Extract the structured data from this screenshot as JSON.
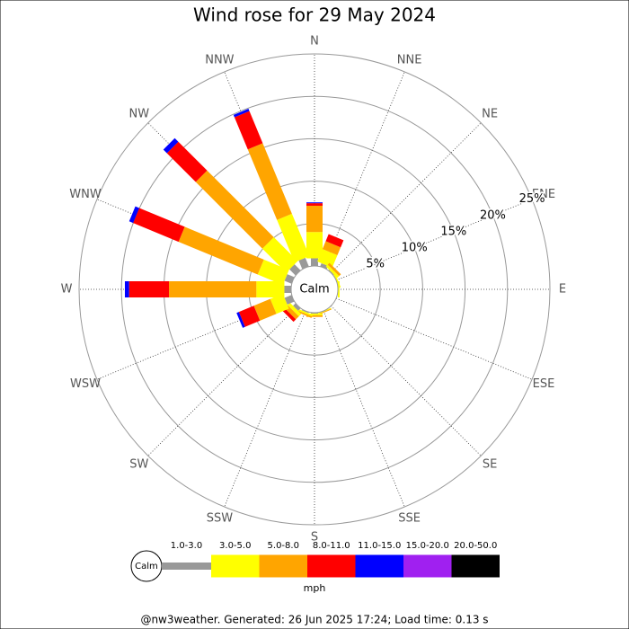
{
  "chart_data": {
    "type": "windrose",
    "title": "Wind rose for 29 May 2024",
    "directions": [
      "N",
      "NNE",
      "NE",
      "ENE",
      "E",
      "ESE",
      "SE",
      "SSE",
      "S",
      "SSW",
      "SW",
      "WSW",
      "W",
      "WNW",
      "NW",
      "NNW"
    ],
    "series": [
      {
        "name": "1.0-3.0",
        "color": "#999999",
        "values": [
          0.9,
          0.4,
          0.1,
          0,
          0,
          0,
          0,
          0,
          0.1,
          0.1,
          0.4,
          0.9,
          0.8,
          0.9,
          1.0,
          1.1
        ]
      },
      {
        "name": "3.0-5.0",
        "color": "#ffff00",
        "values": [
          3.1,
          1.6,
          0.3,
          0.2,
          0.2,
          0,
          0,
          0.1,
          0.2,
          0.2,
          0.4,
          1.6,
          3.3,
          3.2,
          4.0,
          5.4
        ]
      },
      {
        "name": "5.0-8.0",
        "color": "#ffa500",
        "values": [
          3.1,
          1.0,
          0.3,
          0,
          0,
          0,
          0,
          0.1,
          0.2,
          0.2,
          0.5,
          2.1,
          10.3,
          10.1,
          11.1,
          9.0
        ]
      },
      {
        "name": "8.0-11.0",
        "color": "#ff0000",
        "values": [
          0.3,
          0.9,
          0,
          0,
          0,
          0,
          0,
          0,
          0,
          0,
          0.4,
          1.9,
          4.7,
          5.8,
          4.8,
          4.1
        ]
      },
      {
        "name": "11.0-15.0",
        "color": "#0000ff",
        "values": [
          0.1,
          0,
          0,
          0,
          0,
          0,
          0,
          0,
          0,
          0,
          0,
          0.3,
          0.5,
          0.5,
          0.6,
          0.3
        ]
      },
      {
        "name": "15.0-20.0",
        "color": "#a020f0",
        "values": [
          0,
          0,
          0,
          0,
          0,
          0,
          0,
          0,
          0,
          0,
          0,
          0,
          0,
          0,
          0,
          0
        ]
      },
      {
        "name": "20.0-50.0",
        "color": "#000000",
        "values": [
          0,
          0,
          0,
          0,
          0,
          0,
          0,
          0,
          0,
          0,
          0,
          0,
          0,
          0,
          0,
          0
        ]
      }
    ],
    "rlim": [
      0,
      25
    ],
    "rticks": [
      {
        "value": 5,
        "label": "5%"
      },
      {
        "value": 10,
        "label": "10%"
      },
      {
        "value": 15,
        "label": "15%"
      },
      {
        "value": 20,
        "label": "20%"
      },
      {
        "value": 25,
        "label": "25%"
      }
    ],
    "calm_label": "Calm",
    "units": "mph"
  },
  "footer": "@nw3weather. Generated: 26 Jun 2025 17:24; Load time: 0.13 s"
}
